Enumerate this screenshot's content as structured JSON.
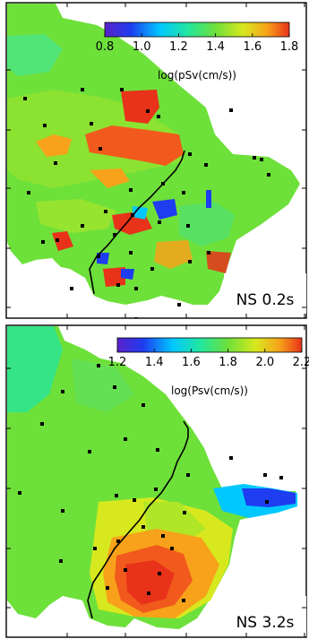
{
  "chart_data": [
    {
      "type": "heatmap",
      "panel_label": "NS 0.2s",
      "colorbar": {
        "label": "log(pSv(cm/s))",
        "range": [
          0.8,
          1.8
        ],
        "ticks": [
          "0.8",
          "1.0",
          "1.2",
          "1.4",
          "1.6",
          "1.8"
        ]
      },
      "field_notes": "spatial map of spectral velocity; moderate green background with red/orange highs in north-central band and scattered blue lows near the fault trace",
      "stations_count_approx": 40
    },
    {
      "type": "heatmap",
      "panel_label": "NS 3.2s",
      "colorbar": {
        "label": "log(Psv(cm/s))",
        "range": [
          1.2,
          2.2
        ],
        "ticks": [
          "1.2",
          "1.4",
          "1.6",
          "1.8",
          "2.0",
          "2.2"
        ]
      },
      "field_notes": "smooth field, green in north, red/orange high in southern basin, blue low on eastern arm",
      "stations_count_approx": 40
    }
  ],
  "colors": {
    "colormap": [
      "#5a22c8",
      "#1e3cf0",
      "#00c8ff",
      "#22e6a0",
      "#6ee03a",
      "#d8e81e",
      "#f7a21a",
      "#e8321a"
    ],
    "station": "#000000",
    "fault": "#000000"
  }
}
